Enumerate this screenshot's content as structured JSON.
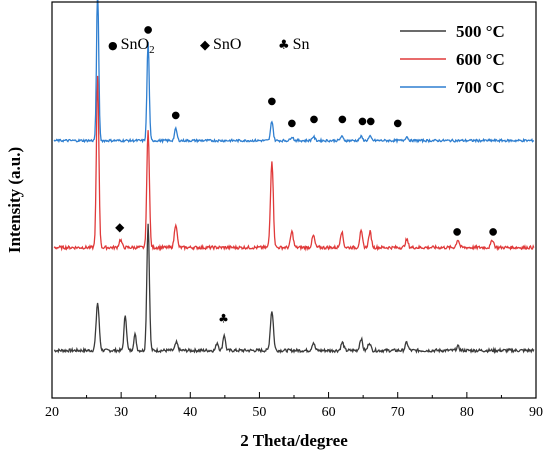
{
  "chart_data": {
    "type": "line",
    "xlabel": "2 Theta/degree",
    "ylabel": "Intensity (a.u.)",
    "xlim": [
      20,
      90
    ],
    "x_ticks": [
      "20",
      "30",
      "40",
      "50",
      "60",
      "70",
      "80",
      "90"
    ],
    "y_ticks_shown": false,
    "legend_position": "top-right",
    "phase_legend": [
      {
        "symbol": "●",
        "label": "SnO",
        "subscript": "2"
      },
      {
        "symbol": "◆",
        "label": "SnO",
        "subscript": ""
      },
      {
        "symbol": "♣",
        "label": "Sn",
        "subscript": ""
      }
    ],
    "series": [
      {
        "name": "500 °C",
        "color": "#3a3a3a",
        "baseline": 0.12,
        "noise": 0.004,
        "peaks": [
          {
            "x": 26.6,
            "h": 0.12,
            "w": 0.22
          },
          {
            "x": 30.6,
            "h": 0.09,
            "w": 0.18
          },
          {
            "x": 32.0,
            "h": 0.04,
            "w": 0.18
          },
          {
            "x": 33.9,
            "h": 0.32,
            "w": 0.18
          },
          {
            "x": 38.0,
            "h": 0.02,
            "w": 0.2
          },
          {
            "x": 43.9,
            "h": 0.02,
            "w": 0.18
          },
          {
            "x": 44.9,
            "h": 0.04,
            "w": 0.18
          },
          {
            "x": 51.8,
            "h": 0.1,
            "w": 0.22
          },
          {
            "x": 57.8,
            "h": 0.02,
            "w": 0.2
          },
          {
            "x": 62.0,
            "h": 0.02,
            "w": 0.2
          },
          {
            "x": 64.7,
            "h": 0.03,
            "w": 0.2
          },
          {
            "x": 65.9,
            "h": 0.02,
            "w": 0.2
          },
          {
            "x": 71.3,
            "h": 0.02,
            "w": 0.2
          },
          {
            "x": 78.7,
            "h": 0.01,
            "w": 0.2
          }
        ]
      },
      {
        "name": "600 °C",
        "color": "#e03a3a",
        "baseline": 0.38,
        "noise": 0.004,
        "peaks": [
          {
            "x": 26.6,
            "h": 0.43,
            "w": 0.18
          },
          {
            "x": 29.9,
            "h": 0.02,
            "w": 0.2
          },
          {
            "x": 33.9,
            "h": 0.3,
            "w": 0.18
          },
          {
            "x": 37.9,
            "h": 0.06,
            "w": 0.2
          },
          {
            "x": 51.8,
            "h": 0.22,
            "w": 0.2
          },
          {
            "x": 54.7,
            "h": 0.04,
            "w": 0.2
          },
          {
            "x": 57.8,
            "h": 0.03,
            "w": 0.2
          },
          {
            "x": 61.9,
            "h": 0.04,
            "w": 0.2
          },
          {
            "x": 64.7,
            "h": 0.04,
            "w": 0.2
          },
          {
            "x": 66.0,
            "h": 0.04,
            "w": 0.2
          },
          {
            "x": 71.3,
            "h": 0.02,
            "w": 0.2
          },
          {
            "x": 78.7,
            "h": 0.02,
            "w": 0.2
          },
          {
            "x": 83.7,
            "h": 0.02,
            "w": 0.2
          }
        ]
      },
      {
        "name": "700 °C",
        "color": "#2f7fd0",
        "baseline": 0.65,
        "noise": 0.003,
        "peaks": [
          {
            "x": 26.6,
            "h": 0.38,
            "w": 0.16
          },
          {
            "x": 33.9,
            "h": 0.25,
            "w": 0.16
          },
          {
            "x": 37.9,
            "h": 0.03,
            "w": 0.18
          },
          {
            "x": 51.8,
            "h": 0.05,
            "w": 0.18
          },
          {
            "x": 54.7,
            "h": 0.01,
            "w": 0.2
          },
          {
            "x": 57.8,
            "h": 0.01,
            "w": 0.2
          },
          {
            "x": 61.9,
            "h": 0.01,
            "w": 0.2
          },
          {
            "x": 64.7,
            "h": 0.01,
            "w": 0.2
          },
          {
            "x": 66.0,
            "h": 0.01,
            "w": 0.2
          },
          {
            "x": 71.3,
            "h": 0.01,
            "w": 0.2
          }
        ]
      }
    ],
    "annotations": [
      {
        "symbol": "●",
        "x": 26.6,
        "y": 1.055
      },
      {
        "symbol": "●",
        "x": 33.9,
        "y": 0.93
      },
      {
        "symbol": "●",
        "x": 37.9,
        "y": 0.715
      },
      {
        "symbol": "●",
        "x": 51.8,
        "y": 0.75
      },
      {
        "symbol": "●",
        "x": 54.7,
        "y": 0.695
      },
      {
        "symbol": "●",
        "x": 57.9,
        "y": 0.705
      },
      {
        "symbol": "●",
        "x": 62.0,
        "y": 0.705
      },
      {
        "symbol": "●",
        "x": 64.9,
        "y": 0.7
      },
      {
        "symbol": "●",
        "x": 66.1,
        "y": 0.7
      },
      {
        "symbol": "●",
        "x": 70.0,
        "y": 0.695
      },
      {
        "symbol": "◆",
        "x": 29.8,
        "y": 0.43
      },
      {
        "symbol": "●",
        "x": 78.6,
        "y": 0.42
      },
      {
        "symbol": "●",
        "x": 83.8,
        "y": 0.42
      },
      {
        "symbol": "♣",
        "x": 44.8,
        "y": 0.2
      }
    ]
  }
}
